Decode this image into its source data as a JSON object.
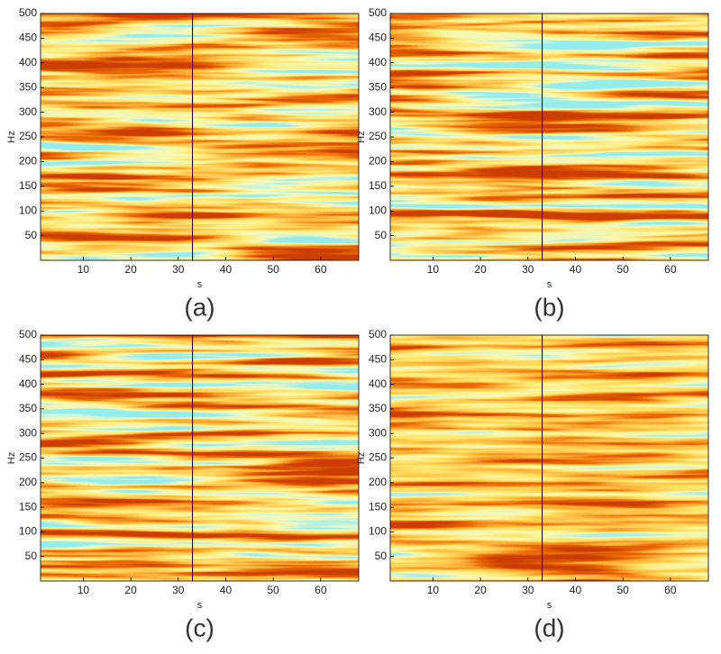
{
  "chart_data": [
    {
      "type": "heatmap",
      "caption": "(a)",
      "xlabel": "s",
      "ylabel": "Hz",
      "xlim": [
        1,
        68
      ],
      "ylim": [
        0,
        500
      ],
      "xticks": [
        10,
        20,
        30,
        40,
        50,
        60
      ],
      "yticks": [
        50,
        100,
        150,
        200,
        250,
        300,
        350,
        400,
        450,
        500
      ],
      "marker_x": 33
    },
    {
      "type": "heatmap",
      "caption": "(b)",
      "xlabel": "s",
      "ylabel": "Hz",
      "xlim": [
        1,
        68
      ],
      "ylim": [
        0,
        500
      ],
      "xticks": [
        10,
        20,
        30,
        40,
        50,
        60
      ],
      "yticks": [
        50,
        100,
        150,
        200,
        250,
        300,
        350,
        400,
        450,
        500
      ],
      "marker_x": 33
    },
    {
      "type": "heatmap",
      "caption": "(c)",
      "xlabel": "s",
      "ylabel": "Hz",
      "xlim": [
        1,
        68
      ],
      "ylim": [
        0,
        500
      ],
      "xticks": [
        10,
        20,
        30,
        40,
        50,
        60
      ],
      "yticks": [
        50,
        100,
        150,
        200,
        250,
        300,
        350,
        400,
        450,
        500
      ],
      "marker_x": 33
    },
    {
      "type": "heatmap",
      "caption": "(d)",
      "xlabel": "s",
      "ylabel": "Hz",
      "xlim": [
        1,
        68
      ],
      "ylim": [
        0,
        500
      ],
      "xticks": [
        10,
        20,
        30,
        40,
        50,
        60
      ],
      "yticks": [
        50,
        100,
        150,
        200,
        250,
        300,
        350,
        400,
        450,
        500
      ],
      "marker_x": 33
    }
  ]
}
